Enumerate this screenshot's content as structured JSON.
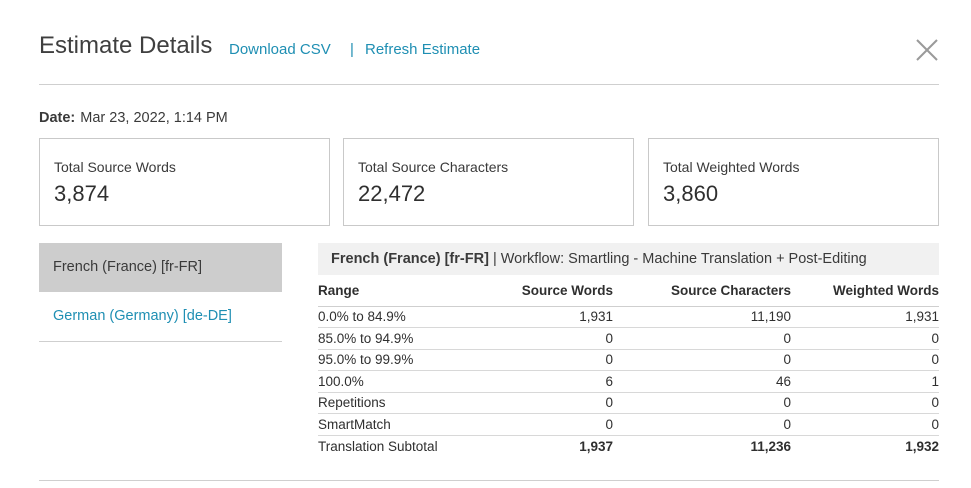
{
  "header": {
    "title": "Estimate Details",
    "download_csv": "Download CSV",
    "separator": "|",
    "refresh_estimate": "Refresh Estimate"
  },
  "date": {
    "label": "Date:",
    "value": "Mar 23, 2022, 1:14 PM"
  },
  "stats": [
    {
      "label": "Total Source Words",
      "value": "3,874"
    },
    {
      "label": "Total Source Characters",
      "value": "22,472"
    },
    {
      "label": "Total Weighted Words",
      "value": "3,860"
    }
  ],
  "languages": [
    {
      "label": "French (France) [fr-FR]",
      "selected": true
    },
    {
      "label": "German (Germany) [de-DE]",
      "selected": false
    }
  ],
  "panel": {
    "language": "French (France) [fr-FR]",
    "workflow": "| Workflow: Smartling - Machine Translation + Post-Editing",
    "columns": [
      "Range",
      "Source Words",
      "Source Characters",
      "Weighted Words"
    ],
    "rows": [
      [
        "0.0% to 84.9%",
        "1,931",
        "11,190",
        "1,931"
      ],
      [
        "85.0% to 94.9%",
        "0",
        "0",
        "0"
      ],
      [
        "95.0% to 99.9%",
        "0",
        "0",
        "0"
      ],
      [
        "100.0%",
        "6",
        "46",
        "1"
      ],
      [
        "Repetitions",
        "0",
        "0",
        "0"
      ],
      [
        "SmartMatch",
        "0",
        "0",
        "0"
      ]
    ],
    "subtotal": [
      "Translation Subtotal",
      "1,937",
      "11,236",
      "1,932"
    ]
  },
  "colors": {
    "link": "#1f8fb3",
    "selected_bg": "#cdcdcd",
    "panel_head_bg": "#f1f1f1"
  }
}
